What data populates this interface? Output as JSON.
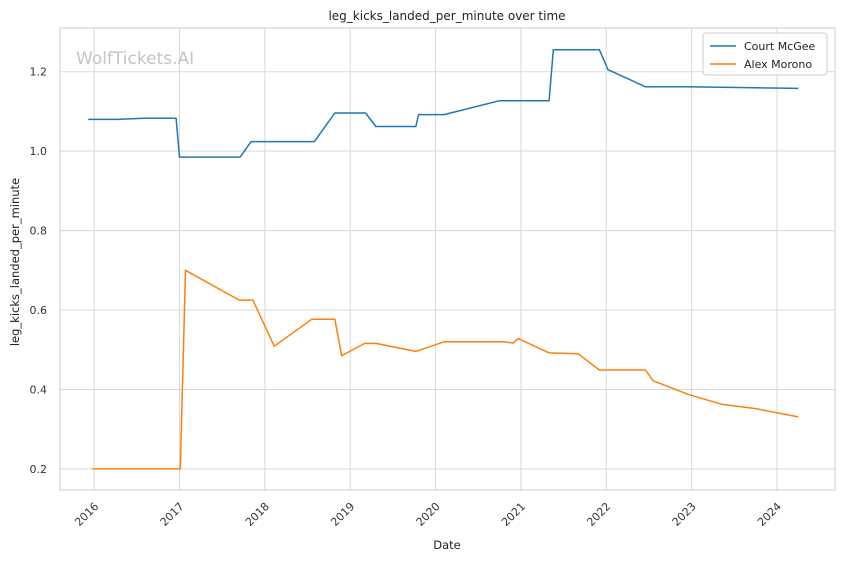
{
  "chart_data": {
    "type": "line",
    "title": "leg_kicks_landed_per_minute over time",
    "xlabel": "Date",
    "ylabel": "leg_kicks_landed_per_minute",
    "watermark": "WolfTickets.AI",
    "x_ticks": [
      "2016",
      "2017",
      "2018",
      "2019",
      "2020",
      "2021",
      "2022",
      "2023",
      "2024"
    ],
    "y_ticks": [
      "0.2",
      "0.4",
      "0.6",
      "0.8",
      "1.0",
      "1.2"
    ],
    "xlim": [
      2015.6,
      2024.68
    ],
    "ylim": [
      0.147,
      1.31
    ],
    "grid": true,
    "legend_position": "top-right",
    "series": [
      {
        "name": "Court McGee",
        "color": "#1f77b4",
        "points": [
          [
            2015.93,
            1.08
          ],
          [
            2016.28,
            1.08
          ],
          [
            2016.58,
            1.083
          ],
          [
            2016.96,
            1.083
          ],
          [
            2017.0,
            0.985
          ],
          [
            2017.71,
            0.985
          ],
          [
            2017.84,
            1.024
          ],
          [
            2018.58,
            1.024
          ],
          [
            2018.82,
            1.096
          ],
          [
            2019.18,
            1.096
          ],
          [
            2019.3,
            1.062
          ],
          [
            2019.77,
            1.062
          ],
          [
            2019.8,
            1.092
          ],
          [
            2020.1,
            1.092
          ],
          [
            2020.75,
            1.127
          ],
          [
            2021.33,
            1.127
          ],
          [
            2021.38,
            1.255
          ],
          [
            2021.92,
            1.255
          ],
          [
            2022.02,
            1.205
          ],
          [
            2022.46,
            1.162
          ],
          [
            2022.95,
            1.162
          ],
          [
            2024.25,
            1.158
          ]
        ]
      },
      {
        "name": "Alex Morono",
        "color": "#ff7f0e",
        "points": [
          [
            2015.98,
            0.2
          ],
          [
            2017.01,
            0.2
          ],
          [
            2017.07,
            0.7
          ],
          [
            2017.7,
            0.625
          ],
          [
            2017.86,
            0.625
          ],
          [
            2018.11,
            0.509
          ],
          [
            2018.55,
            0.577
          ],
          [
            2018.82,
            0.577
          ],
          [
            2018.9,
            0.485
          ],
          [
            2019.17,
            0.516
          ],
          [
            2019.3,
            0.516
          ],
          [
            2019.77,
            0.496
          ],
          [
            2020.1,
            0.52
          ],
          [
            2020.8,
            0.52
          ],
          [
            2020.91,
            0.517
          ],
          [
            2020.97,
            0.528
          ],
          [
            2021.33,
            0.492
          ],
          [
            2021.67,
            0.49
          ],
          [
            2021.92,
            0.449
          ],
          [
            2022.46,
            0.449
          ],
          [
            2022.55,
            0.422
          ],
          [
            2022.97,
            0.387
          ],
          [
            2023.35,
            0.363
          ],
          [
            2023.75,
            0.352
          ],
          [
            2024.25,
            0.331
          ]
        ]
      }
    ]
  }
}
